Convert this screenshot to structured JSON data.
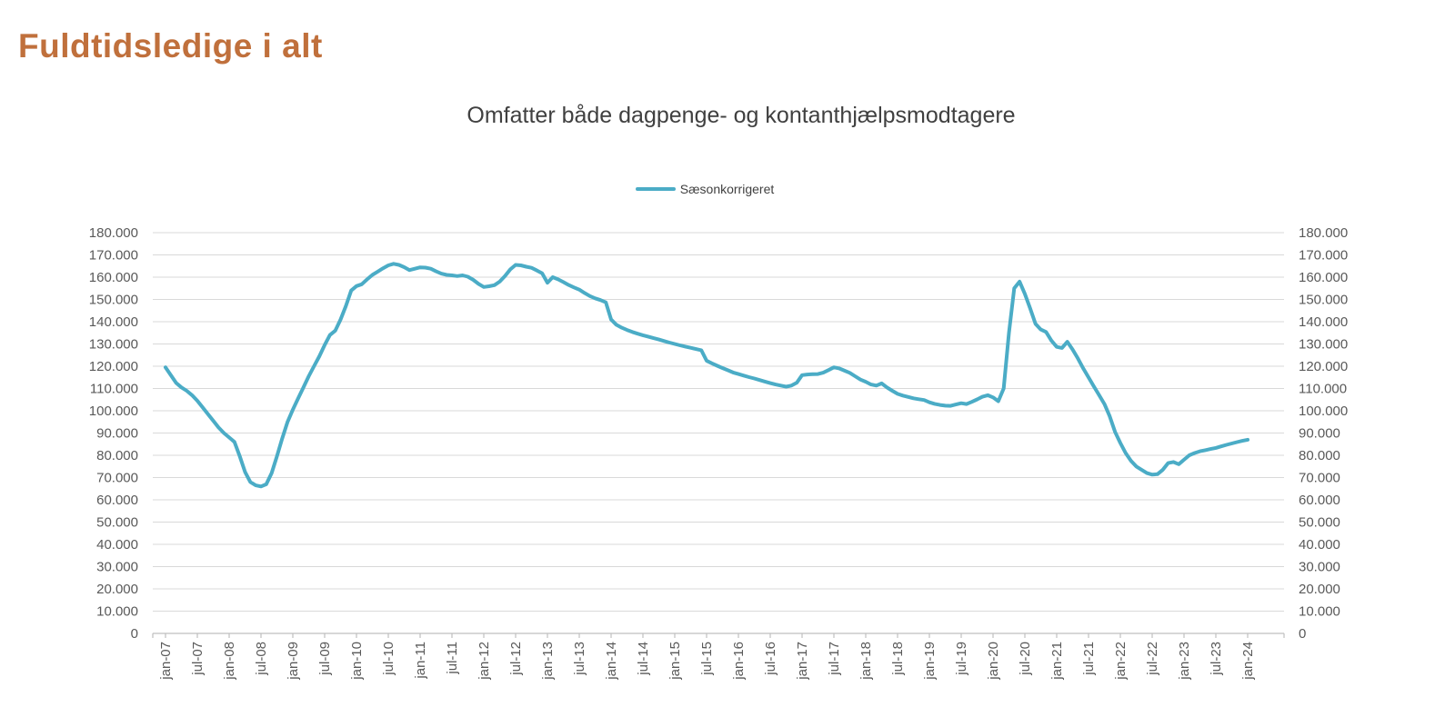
{
  "page": {
    "title": "Fuldtidsledige i alt"
  },
  "chart": {
    "subtitle": "Omfatter både dagpenge- og kontanthjælpsmodtagere",
    "legend_label": "Sæsonkorrigeret"
  },
  "colors": {
    "title_text": "#C0703C",
    "subtitle_text": "#404040",
    "line": "#4BACC6",
    "gridline": "#D9D9D9",
    "axis": "#BFBFBF",
    "tick_text": "#595959"
  },
  "chart_data": {
    "type": "line",
    "title": "Omfatter både dagpenge- og kontanthjælpsmodtagere",
    "series_name": "Sæsonkorrigeret",
    "x_frequency": "monthly",
    "x_start": "jan-07",
    "x_end": "jan-24",
    "x_tick_every_months": 6,
    "x_tick_labels": [
      "jan-07",
      "jul-07",
      "jan-08",
      "jul-08",
      "jan-09",
      "jul-09",
      "jan-10",
      "jul-10",
      "jan-11",
      "jul-11",
      "jan-12",
      "jul-12",
      "jan-13",
      "jul-13",
      "jan-14",
      "jul-14",
      "jan-15",
      "jul-15",
      "jan-16",
      "jul-16",
      "jan-17",
      "jul-17",
      "jan-18",
      "jul-18",
      "jan-19",
      "jul-19",
      "jan-20",
      "jul-20",
      "jan-21",
      "jul-21",
      "jan-22",
      "jul-22",
      "jan-23",
      "jul-23",
      "jan-24"
    ],
    "ylim": [
      0,
      180000
    ],
    "y_tick_step": 10000,
    "y_tick_labels": [
      "0",
      "10.000",
      "20.000",
      "30.000",
      "40.000",
      "50.000",
      "60.000",
      "70.000",
      "80.000",
      "90.000",
      "100.000",
      "110.000",
      "120.000",
      "130.000",
      "140.000",
      "150.000",
      "160.000",
      "170.000",
      "180.000"
    ],
    "y_axis_sides": "left-and-right",
    "grid": "horizontal-only",
    "legend_position": "top-center",
    "values": [
      119500,
      116000,
      112500,
      110500,
      109000,
      107000,
      104500,
      101500,
      98500,
      95500,
      92500,
      90000,
      88000,
      86000,
      79500,
      72500,
      68000,
      66500,
      66000,
      67000,
      72000,
      79500,
      87500,
      95000,
      100500,
      105500,
      110500,
      115500,
      120000,
      124500,
      129500,
      134000,
      136000,
      141000,
      147000,
      154000,
      156000,
      156800,
      159000,
      161000,
      162500,
      164000,
      165300,
      166000,
      165500,
      164500,
      163200,
      163800,
      164400,
      164300,
      163800,
      162600,
      161600,
      161000,
      160800,
      160500,
      160800,
      160200,
      158800,
      157000,
      155600,
      155900,
      156400,
      158000,
      160500,
      163500,
      165500,
      165300,
      164700,
      164200,
      163000,
      161700,
      157500,
      160000,
      159000,
      157800,
      156500,
      155400,
      154400,
      152900,
      151500,
      150500,
      149700,
      148700,
      141000,
      138600,
      137300,
      136300,
      135400,
      134600,
      133900,
      133300,
      132600,
      132000,
      131300,
      130600,
      130000,
      129400,
      128800,
      128300,
      127700,
      127200,
      122500,
      121300,
      120200,
      119200,
      118200,
      117200,
      116500,
      115800,
      115100,
      114500,
      113800,
      113100,
      112400,
      111800,
      111300,
      110800,
      111300,
      112600,
      116000,
      116300,
      116400,
      116500,
      117100,
      118300,
      119500,
      119000,
      118000,
      117000,
      115500,
      114000,
      113000,
      111800,
      111300,
      112300,
      110500,
      109000,
      107600,
      106800,
      106200,
      105600,
      105200,
      104800,
      103800,
      103100,
      102600,
      102300,
      102200,
      102800,
      103400,
      103000,
      104000,
      105100,
      106300,
      107000,
      106000,
      104300,
      110000,
      135000,
      155000,
      158000,
      152500,
      146000,
      139000,
      136500,
      135400,
      131500,
      128700,
      128200,
      131000,
      127500,
      123500,
      119000,
      115000,
      111000,
      107000,
      103000,
      97500,
      90500,
      85500,
      81000,
      77500,
      75000,
      73500,
      72000,
      71300,
      71500,
      73500,
      76500,
      77000,
      76000,
      78000,
      80000,
      81000,
      81800,
      82300,
      82800,
      83300,
      84000,
      84700,
      85300,
      85900,
      86500,
      87000
    ]
  }
}
